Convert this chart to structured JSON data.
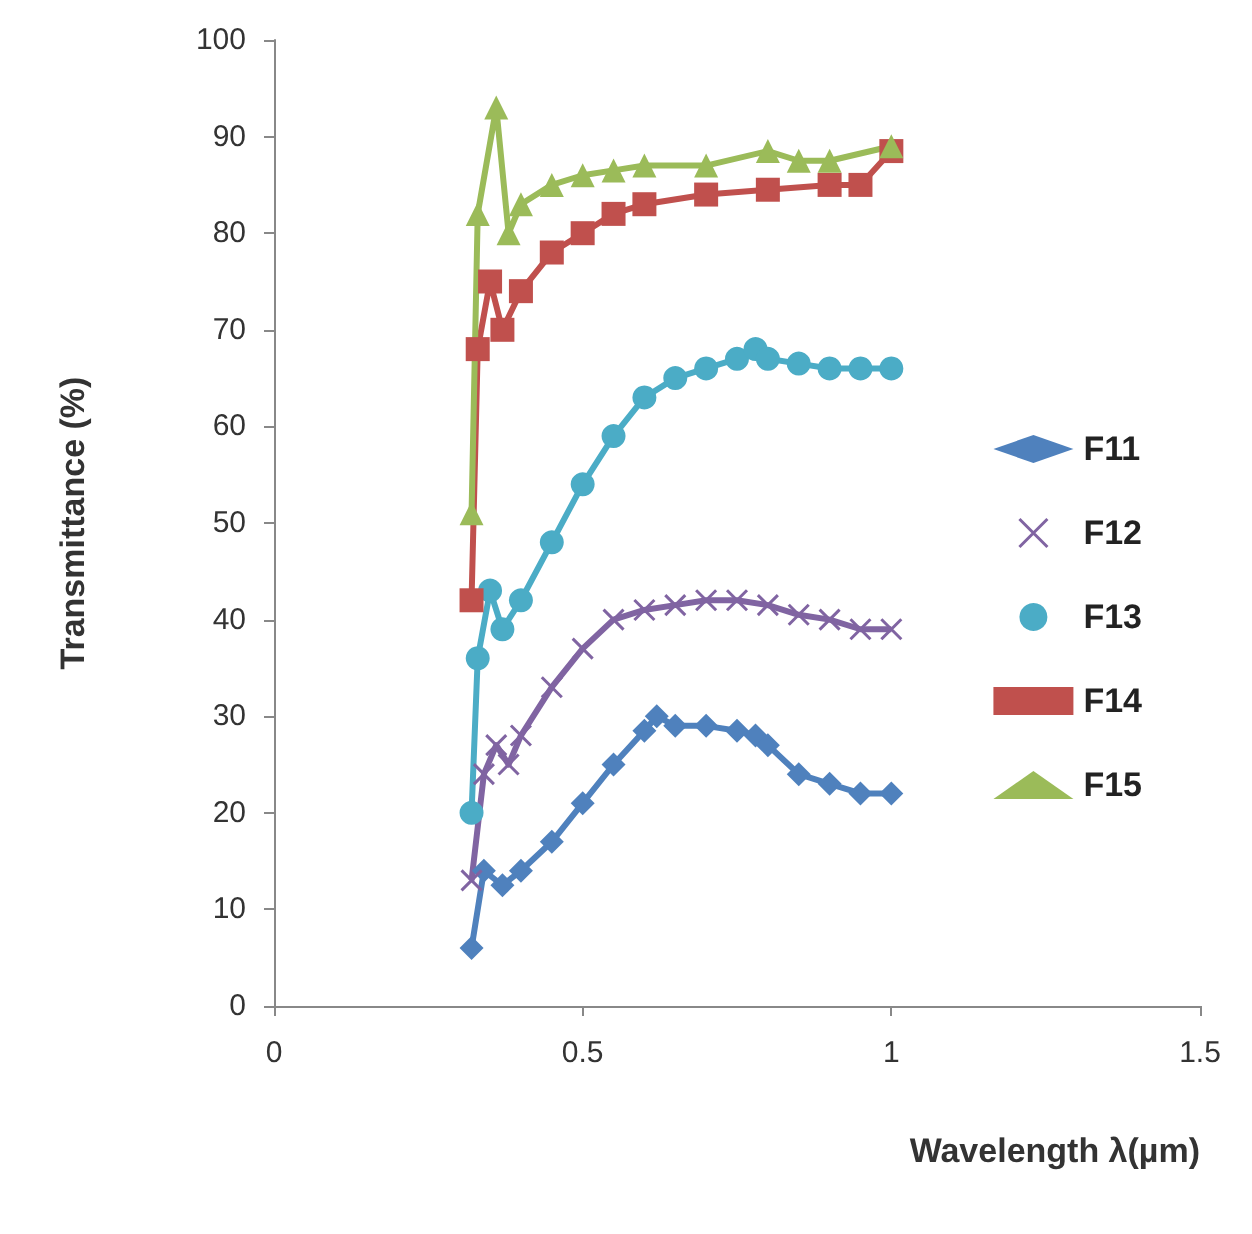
{
  "chart_data": {
    "type": "line",
    "xlabel": "Wavelength λ(µm)",
    "ylabel": "Transmittance (%)",
    "xlim": [
      0,
      1.5
    ],
    "xticks": [
      0,
      0.5,
      1,
      1.5
    ],
    "ylim": [
      0,
      100
    ],
    "yticks": [
      0,
      10,
      20,
      30,
      40,
      50,
      60,
      70,
      80,
      90,
      100
    ],
    "grid": false,
    "legend": "right",
    "series": [
      {
        "name": "F11",
        "color": "#4f81bd",
        "marker": "diamond",
        "x": [
          0.32,
          0.34,
          0.37,
          0.4,
          0.45,
          0.5,
          0.55,
          0.6,
          0.62,
          0.65,
          0.7,
          0.75,
          0.78,
          0.8,
          0.85,
          0.9,
          0.95,
          1.0
        ],
        "values": [
          6,
          14,
          12.5,
          14,
          17,
          21,
          25,
          28.5,
          30,
          29,
          29,
          28.5,
          28,
          27,
          24,
          23,
          22,
          22
        ]
      },
      {
        "name": "F12",
        "color": "#8064a2",
        "marker": "cross",
        "x": [
          0.32,
          0.34,
          0.36,
          0.38,
          0.4,
          0.45,
          0.5,
          0.55,
          0.6,
          0.65,
          0.7,
          0.75,
          0.8,
          0.85,
          0.9,
          0.95,
          1.0
        ],
        "values": [
          13,
          24,
          27,
          25,
          28,
          33,
          37,
          40,
          41,
          41.5,
          42,
          42,
          41.5,
          40.5,
          40,
          39,
          39
        ]
      },
      {
        "name": "F13",
        "color": "#4bacc6",
        "marker": "circle",
        "x": [
          0.32,
          0.33,
          0.35,
          0.37,
          0.4,
          0.45,
          0.5,
          0.55,
          0.6,
          0.65,
          0.7,
          0.75,
          0.78,
          0.8,
          0.85,
          0.9,
          0.95,
          1.0
        ],
        "values": [
          20,
          36,
          43,
          39,
          42,
          48,
          54,
          59,
          63,
          65,
          66,
          67,
          68,
          67,
          66.5,
          66,
          66,
          66
        ]
      },
      {
        "name": "F14",
        "color": "#c0504d",
        "marker": "square",
        "x": [
          0.32,
          0.33,
          0.35,
          0.37,
          0.4,
          0.45,
          0.5,
          0.55,
          0.6,
          0.7,
          0.8,
          0.9,
          0.95,
          1.0
        ],
        "values": [
          42,
          68,
          75,
          70,
          74,
          78,
          80,
          82,
          83,
          84,
          84.5,
          85,
          85,
          88.5
        ]
      },
      {
        "name": "F15",
        "color": "#9bbb59",
        "marker": "triangle",
        "x": [
          0.32,
          0.33,
          0.36,
          0.38,
          0.4,
          0.45,
          0.5,
          0.55,
          0.6,
          0.7,
          0.8,
          0.85,
          0.9,
          1.0
        ],
        "values": [
          51,
          82,
          93,
          80,
          83,
          85,
          86,
          86.5,
          87,
          87,
          88.5,
          87.5,
          87.5,
          89
        ]
      }
    ]
  }
}
